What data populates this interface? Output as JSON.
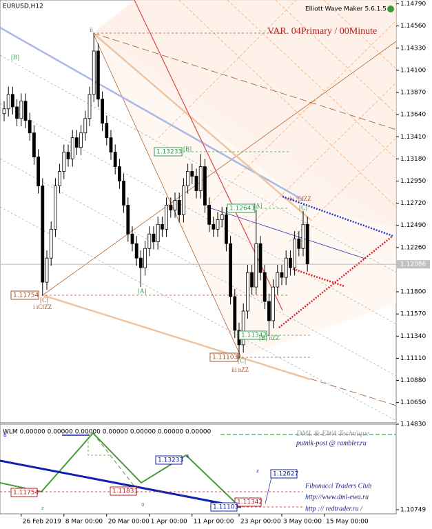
{
  "chart_data": {
    "type": "candlestick",
    "title": "EURUSD,H12",
    "subtitle": "Elliott Wave Maker 5.6.1.5",
    "annotation": "VAR. 04Primary / 00Minute",
    "categories": [
      null,
      null,
      null,
      null,
      "26 Feb 2019",
      null,
      null,
      null,
      null,
      null,
      null,
      null,
      null,
      null,
      "8 Mar 00:00",
      null,
      null,
      null,
      null,
      null,
      null,
      null,
      null,
      null,
      "20 Mar 00:00",
      null,
      null,
      null,
      null,
      null,
      null,
      null,
      null,
      null,
      "1 Apr 00:00",
      null,
      null,
      null,
      null,
      null,
      null,
      null,
      null,
      null,
      "11 Apr 00:00",
      null,
      null,
      null,
      null,
      null,
      null,
      null,
      null,
      null,
      null,
      "23 Apr 00:00",
      null,
      null,
      null,
      null,
      null,
      null,
      null,
      null,
      null,
      "3 May 00:00",
      null,
      null,
      null,
      null,
      null,
      null,
      null,
      null,
      null,
      "15 May 00:00"
    ],
    "open": [
      1.1365,
      1.137,
      1.1385,
      1.1372,
      1.136,
      1.1378,
      1.1358,
      1.1345,
      1.132,
      1.129,
      1.119,
      1.1215,
      1.1245,
      1.129,
      1.1305,
      1.1325,
      1.1318,
      1.134,
      1.133,
      1.1345,
      1.136,
      1.1385,
      1.143,
      1.138,
      1.1355,
      1.134,
      1.1325,
      1.131,
      1.1295,
      1.127,
      1.124,
      1.123,
      1.1215,
      1.1205,
      1.1225,
      1.124,
      1.1232,
      1.125,
      1.1245,
      1.127,
      1.1265,
      1.1275,
      1.126,
      1.129,
      1.1305,
      1.13,
      1.1285,
      1.131,
      1.127,
      1.125,
      1.1245,
      1.1255,
      1.126,
      1.123,
      1.1175,
      1.114,
      1.1125,
      1.116,
      1.12,
      1.1185,
      1.123,
      1.12,
      1.117,
      1.115,
      1.1185,
      1.12,
      1.1195,
      1.1215,
      1.1205,
      1.1235,
      1.1225,
      1.125,
      null,
      null,
      null,
      null
    ],
    "high": [
      1.1378,
      1.1393,
      1.1393,
      1.138,
      1.1386,
      1.1386,
      1.1366,
      1.1353,
      1.1328,
      1.1298,
      1.1223,
      1.1253,
      1.1298,
      1.1313,
      1.1333,
      1.1333,
      1.1348,
      1.1348,
      1.1353,
      1.1368,
      1.1393,
      1.1448,
      1.1438,
      1.1388,
      1.1363,
      1.1348,
      1.1333,
      1.1318,
      1.1303,
      1.1278,
      1.1248,
      1.1238,
      1.1223,
      1.1233,
      1.1248,
      1.1248,
      1.1258,
      1.1258,
      1.1278,
      1.1278,
      1.1283,
      1.1283,
      1.1298,
      1.1313,
      1.1313,
      1.1308,
      1.1323,
      1.1318,
      1.1278,
      1.1258,
      1.1263,
      1.1268,
      1.1268,
      1.1238,
      1.1183,
      1.1148,
      1.1168,
      1.1208,
      1.1208,
      1.1265,
      1.1238,
      1.1208,
      1.1178,
      1.1193,
      1.1208,
      1.1208,
      1.1223,
      1.1223,
      1.1243,
      1.1243,
      1.1264,
      1.1258,
      null,
      null,
      null,
      null
    ],
    "low": [
      1.1357,
      1.1362,
      1.1364,
      1.1352,
      1.1352,
      1.135,
      1.1337,
      1.1312,
      1.1282,
      1.1176,
      1.1182,
      1.1207,
      1.1237,
      1.1282,
      1.1297,
      1.131,
      1.131,
      1.1322,
      1.1322,
      1.1337,
      1.1352,
      1.1377,
      1.1372,
      1.1347,
      1.1332,
      1.1317,
      1.1302,
      1.1287,
      1.1262,
      1.1232,
      1.1222,
      1.1207,
      1.1185,
      1.1197,
      1.1217,
      1.1224,
      1.1224,
      1.1237,
      1.1237,
      1.1257,
      1.1257,
      1.1252,
      1.1252,
      1.1282,
      1.1292,
      1.1277,
      1.1277,
      1.1262,
      1.1242,
      1.1237,
      1.1237,
      1.1247,
      1.1222,
      1.1167,
      1.1132,
      1.111,
      1.1117,
      1.1152,
      1.1177,
      1.1177,
      1.1192,
      1.1162,
      1.1134,
      1.1142,
      1.1177,
      1.1187,
      1.1187,
      1.1197,
      1.1197,
      1.1217,
      1.1217,
      1.1201,
      null,
      null,
      null,
      null
    ],
    "close": [
      1.137,
      1.1385,
      1.1372,
      1.136,
      1.1378,
      1.1358,
      1.1345,
      1.132,
      1.129,
      1.119,
      1.1215,
      1.1245,
      1.129,
      1.1305,
      1.1325,
      1.1318,
      1.134,
      1.133,
      1.1345,
      1.136,
      1.1385,
      1.143,
      1.138,
      1.1355,
      1.134,
      1.1325,
      1.131,
      1.1295,
      1.127,
      1.124,
      1.123,
      1.1215,
      1.1205,
      1.1225,
      1.124,
      1.1232,
      1.125,
      1.1245,
      1.127,
      1.1265,
      1.1275,
      1.126,
      1.129,
      1.1305,
      1.13,
      1.1285,
      1.131,
      1.127,
      1.125,
      1.1245,
      1.1255,
      1.126,
      1.123,
      1.1175,
      1.114,
      1.1125,
      1.116,
      1.12,
      1.1185,
      1.123,
      1.12,
      1.117,
      1.115,
      1.1185,
      1.12,
      1.1195,
      1.1215,
      1.1205,
      1.1235,
      1.1225,
      1.125,
      1.1209,
      null,
      null,
      null,
      null
    ],
    "ylim": [
      1.1044,
      1.1483
    ],
    "yticks": [
      {
        "value": 1.1479,
        "label": "1.14790"
      },
      {
        "value": 1.1456,
        "label": "1.14560"
      },
      {
        "value": 1.1433,
        "label": "1.14330"
      },
      {
        "value": 1.141,
        "label": "1.14100"
      },
      {
        "value": 1.1387,
        "label": "1.13870"
      },
      {
        "value": 1.1364,
        "label": "1.13640"
      },
      {
        "value": 1.1341,
        "label": "1.13410"
      },
      {
        "value": 1.1318,
        "label": "1.13180"
      },
      {
        "value": 1.1295,
        "label": "1.12950"
      },
      {
        "value": 1.1272,
        "label": "1.12720"
      },
      {
        "value": 1.1249,
        "label": "1.12490"
      },
      {
        "value": 1.1226,
        "label": "1.12260"
      },
      {
        "value": 1.118,
        "label": "1.11800"
      },
      {
        "value": 1.1157,
        "label": "1.11570"
      },
      {
        "value": 1.1134,
        "label": "1.11340"
      },
      {
        "value": 1.1111,
        "label": "1.11110"
      },
      {
        "value": 1.1088,
        "label": "1.10880"
      },
      {
        "value": 1.1065,
        "label": "1.10650"
      }
    ],
    "last_price": {
      "value": 1.12086,
      "label": "1.12086"
    },
    "price_boxes": [
      "1.13233",
      "1.12641",
      "1.11754",
      "1.11342",
      "1.11103"
    ],
    "wave_labels": [
      "ii",
      "[B]",
      "[B]",
      "[A]",
      "[A]",
      "[C]",
      "i iCfZZ",
      "iv :CfZZ",
      "[C]",
      "[B] nZZ",
      "iii nZZ",
      "[C]"
    ],
    "indicator": {
      "title": "WLM 0.00000 0.00000 0.00000 0.00000 0.00000 0.00000 0.00000",
      "credits": [
        "DML & EWA Technique",
        "putnik-post @ rambler.ru",
        "Fibonacci Traders Club",
        "http://www.dml-ewa.ru",
        "http :// redtrader.ru /"
      ],
      "boxes": [
        "1.13233",
        "1.12627",
        "1.11754",
        "1.11831",
        "1.11342",
        "1.11103"
      ],
      "labels": [
        "B",
        "z",
        "z",
        "0",
        "4"
      ],
      "yticks": [
        {
          "value": 1.1483,
          "label": "1.14830"
        },
        {
          "value": 1.10749,
          "label": "1.10749"
        }
      ]
    }
  }
}
